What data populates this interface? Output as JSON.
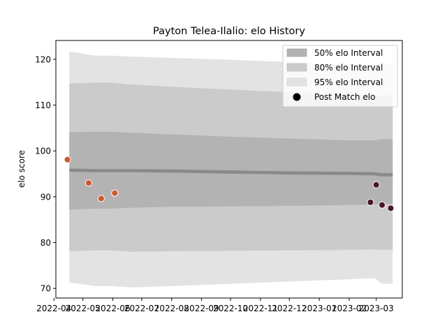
{
  "chart_data": {
    "type": "area",
    "title": "Payton Telea-Ilalio: elo History",
    "xlabel": "",
    "ylabel": "elo score",
    "xlim": [
      "2022-04-03",
      "2023-03-28"
    ],
    "ylim": [
      67.9,
      124.1
    ],
    "y_ticks": [
      70,
      80,
      90,
      100,
      110,
      120
    ],
    "x_ticks": [
      "2022-04",
      "2022-05",
      "2022-06",
      "2022-07",
      "2022-08",
      "2022-09",
      "2022-10",
      "2022-11",
      "2022-12",
      "2023-01",
      "2023-02",
      "2023-03"
    ],
    "grid": false,
    "legend_position": "top-right",
    "band_dates": [
      "2022-04-17",
      "2022-05-14",
      "2022-05-31",
      "2022-06-19",
      "2022-08-01",
      "2022-10-01",
      "2022-12-01",
      "2023-02-01",
      "2023-02-27",
      "2023-03-07",
      "2023-03-18"
    ],
    "mean": [
      95.8,
      95.7,
      95.7,
      95.7,
      95.6,
      95.4,
      95.2,
      95.1,
      95.0,
      94.8,
      94.8
    ],
    "series": [
      {
        "name": "95% elo Interval",
        "color": "#e3e3e3",
        "upper": [
          121.7,
          120.8,
          120.8,
          120.6,
          120.3,
          119.9,
          119.4,
          118.9,
          118.7,
          118.9,
          119.0
        ],
        "lower": [
          71.3,
          70.5,
          70.5,
          70.2,
          70.5,
          71.0,
          71.5,
          72.0,
          72.2,
          71.0,
          71.0
        ]
      },
      {
        "name": "80% elo Interval",
        "color": "#cbcbcb",
        "upper": [
          114.7,
          114.9,
          114.9,
          114.5,
          114.0,
          113.4,
          112.8,
          112.3,
          112.1,
          112.2,
          112.2
        ],
        "lower": [
          78.1,
          78.3,
          78.3,
          78.0,
          78.1,
          78.2,
          78.3,
          78.4,
          78.5,
          78.4,
          78.4
        ]
      },
      {
        "name": "50% elo Interval",
        "color": "#b3b3b3",
        "upper": [
          104.1,
          104.2,
          104.2,
          104.0,
          103.6,
          103.1,
          102.7,
          102.3,
          102.3,
          102.6,
          102.6
        ],
        "lower": [
          87.2,
          87.4,
          87.4,
          87.6,
          87.8,
          87.9,
          88.0,
          88.2,
          88.3,
          88.4,
          88.4
        ]
      }
    ],
    "points": {
      "name": "Post Match elo",
      "legend_color": "#000000",
      "data": [
        {
          "date": "2022-04-15",
          "elo": 98.1,
          "color": "#cc5a2d"
        },
        {
          "date": "2022-05-07",
          "elo": 93.0,
          "color": "#cc5a2d"
        },
        {
          "date": "2022-05-20",
          "elo": 89.6,
          "color": "#cc5a2d"
        },
        {
          "date": "2022-06-03",
          "elo": 90.8,
          "color": "#cc5a2d"
        },
        {
          "date": "2023-02-23",
          "elo": 88.8,
          "color": "#4a1824"
        },
        {
          "date": "2023-03-01",
          "elo": 92.6,
          "color": "#4a1824"
        },
        {
          "date": "2023-03-07",
          "elo": 88.2,
          "color": "#4a1824"
        },
        {
          "date": "2023-03-16",
          "elo": 87.5,
          "color": "#4a1824"
        }
      ]
    }
  }
}
